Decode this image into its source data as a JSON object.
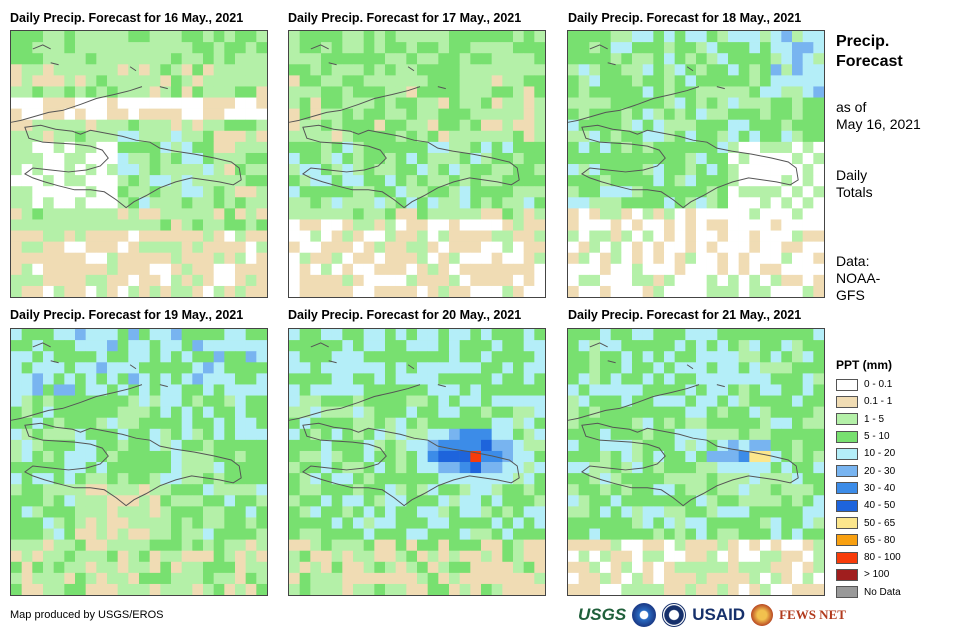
{
  "panels": [
    {
      "title": "Daily Precip. Forecast for 16 May., 2021"
    },
    {
      "title": "Daily Precip. Forecast for 17 May., 2021"
    },
    {
      "title": "Daily Precip. Forecast for 18 May., 2021"
    },
    {
      "title": "Daily Precip. Forecast for 19 May., 2021"
    },
    {
      "title": "Daily Precip. Forecast for 20 May., 2021"
    },
    {
      "title": "Daily Precip. Forecast for 21 May., 2021"
    }
  ],
  "sidebar": {
    "title_line1": "Precip.",
    "title_line2": "Forecast",
    "asof_line1": "as of",
    "asof_line2": "May 16, 2021",
    "totals_line1": "Daily",
    "totals_line2": "Totals",
    "data_line1": "Data:",
    "data_line2": "NOAA-",
    "data_line3": "GFS"
  },
  "legend": {
    "title": "PPT (mm)",
    "items": [
      {
        "label": "0 - 0.1",
        "color": "#ffffff"
      },
      {
        "label": "0.1 - 1",
        "color": "#f0dcb4"
      },
      {
        "label": "1 - 5",
        "color": "#b4f0a8"
      },
      {
        "label": "5 - 10",
        "color": "#78e070"
      },
      {
        "label": "10 - 20",
        "color": "#b4eef8"
      },
      {
        "label": "20 - 30",
        "color": "#78b4f0"
      },
      {
        "label": "30 - 40",
        "color": "#3c8ce8"
      },
      {
        "label": "40 - 50",
        "color": "#1e64dc"
      },
      {
        "label": "50 - 65",
        "color": "#fce68c"
      },
      {
        "label": "65 - 80",
        "color": "#f8a010"
      },
      {
        "label": "80 - 100",
        "color": "#f83c0a"
      },
      {
        "label": "> 100",
        "color": "#a01e1e"
      },
      {
        "label": "No Data",
        "color": "#999999"
      }
    ]
  },
  "footer": {
    "credit": "Map produced by USGS/EROS",
    "logo_usgs": "USGS",
    "logo_usaid": "USAID",
    "logo_fews": "FEWS NET"
  }
}
